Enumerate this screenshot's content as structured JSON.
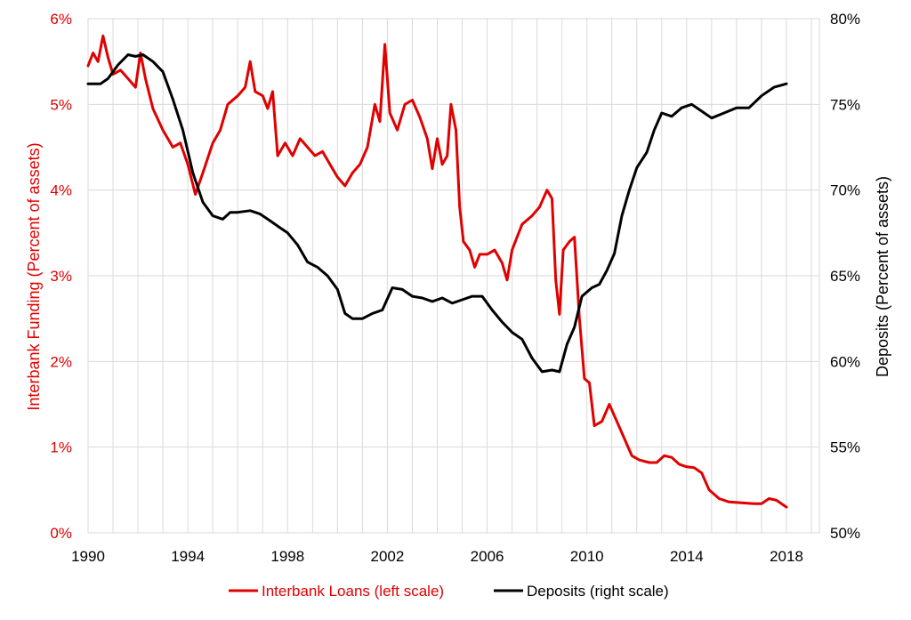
{
  "chart_data": {
    "type": "line",
    "title": "",
    "x_ticks": [
      "1990",
      "1994",
      "1998",
      "2002",
      "2006",
      "2010",
      "2014",
      "2018"
    ],
    "xlim": [
      1990,
      2019
    ],
    "left_axis": {
      "label": "Interbank Funding (Percent of assets)",
      "ticks": [
        "0%",
        "1%",
        "2%",
        "3%",
        "4%",
        "5%",
        "6%"
      ],
      "ylim": [
        0,
        6
      ],
      "color": "#e00000"
    },
    "right_axis": {
      "label": "Deposits (Percent of assets)",
      "ticks": [
        "50%",
        "55%",
        "60%",
        "65%",
        "70%",
        "75%",
        "80%"
      ],
      "ylim": [
        50,
        80
      ],
      "color": "#000000"
    },
    "grid": true,
    "legend_position": "bottom",
    "series": [
      {
        "name": "Interbank Loans (left scale)",
        "axis": "left",
        "color": "#e00000",
        "points": [
          [
            1990.0,
            5.45
          ],
          [
            1990.2,
            5.6
          ],
          [
            1990.4,
            5.5
          ],
          [
            1990.6,
            5.8
          ],
          [
            1990.8,
            5.55
          ],
          [
            1991.0,
            5.35
          ],
          [
            1991.3,
            5.4
          ],
          [
            1991.6,
            5.3
          ],
          [
            1991.9,
            5.2
          ],
          [
            1992.1,
            5.6
          ],
          [
            1992.3,
            5.3
          ],
          [
            1992.6,
            4.95
          ],
          [
            1993.0,
            4.7
          ],
          [
            1993.4,
            4.5
          ],
          [
            1993.7,
            4.55
          ],
          [
            1994.0,
            4.3
          ],
          [
            1994.3,
            3.95
          ],
          [
            1994.6,
            4.2
          ],
          [
            1995.0,
            4.55
          ],
          [
            1995.3,
            4.7
          ],
          [
            1995.6,
            5.0
          ],
          [
            1996.0,
            5.1
          ],
          [
            1996.3,
            5.2
          ],
          [
            1996.5,
            5.5
          ],
          [
            1996.7,
            5.15
          ],
          [
            1997.0,
            5.1
          ],
          [
            1997.2,
            4.95
          ],
          [
            1997.4,
            5.15
          ],
          [
            1997.6,
            4.4
          ],
          [
            1997.9,
            4.55
          ],
          [
            1998.2,
            4.4
          ],
          [
            1998.5,
            4.6
          ],
          [
            1998.8,
            4.5
          ],
          [
            1999.1,
            4.4
          ],
          [
            1999.4,
            4.45
          ],
          [
            1999.7,
            4.3
          ],
          [
            2000.0,
            4.15
          ],
          [
            2000.3,
            4.05
          ],
          [
            2000.6,
            4.2
          ],
          [
            2000.9,
            4.3
          ],
          [
            2001.2,
            4.5
          ],
          [
            2001.5,
            5.0
          ],
          [
            2001.7,
            4.8
          ],
          [
            2001.9,
            5.7
          ],
          [
            2002.1,
            4.9
          ],
          [
            2002.4,
            4.7
          ],
          [
            2002.7,
            5.0
          ],
          [
            2003.0,
            5.05
          ],
          [
            2003.3,
            4.85
          ],
          [
            2003.6,
            4.6
          ],
          [
            2003.8,
            4.25
          ],
          [
            2004.0,
            4.6
          ],
          [
            2004.2,
            4.3
          ],
          [
            2004.4,
            4.4
          ],
          [
            2004.55,
            5.0
          ],
          [
            2004.75,
            4.7
          ],
          [
            2004.9,
            3.8
          ],
          [
            2005.05,
            3.4
          ],
          [
            2005.3,
            3.3
          ],
          [
            2005.5,
            3.1
          ],
          [
            2005.7,
            3.25
          ],
          [
            2006.0,
            3.25
          ],
          [
            2006.3,
            3.3
          ],
          [
            2006.6,
            3.15
          ],
          [
            2006.8,
            2.95
          ],
          [
            2007.0,
            3.3
          ],
          [
            2007.4,
            3.6
          ],
          [
            2007.8,
            3.7
          ],
          [
            2008.1,
            3.8
          ],
          [
            2008.4,
            4.0
          ],
          [
            2008.6,
            3.9
          ],
          [
            2008.75,
            2.95
          ],
          [
            2008.9,
            2.55
          ],
          [
            2009.05,
            3.3
          ],
          [
            2009.3,
            3.4
          ],
          [
            2009.5,
            3.45
          ],
          [
            2009.7,
            2.5
          ],
          [
            2009.9,
            1.8
          ],
          [
            2010.1,
            1.75
          ],
          [
            2010.3,
            1.25
          ],
          [
            2010.6,
            1.3
          ],
          [
            2010.9,
            1.5
          ],
          [
            2011.2,
            1.3
          ],
          [
            2011.5,
            1.1
          ],
          [
            2011.8,
            0.9
          ],
          [
            2012.1,
            0.85
          ],
          [
            2012.5,
            0.82
          ],
          [
            2012.8,
            0.82
          ],
          [
            2013.1,
            0.9
          ],
          [
            2013.4,
            0.88
          ],
          [
            2013.7,
            0.8
          ],
          [
            2014.0,
            0.77
          ],
          [
            2014.3,
            0.76
          ],
          [
            2014.6,
            0.7
          ],
          [
            2014.9,
            0.5
          ],
          [
            2015.3,
            0.4
          ],
          [
            2015.7,
            0.36
          ],
          [
            2016.2,
            0.35
          ],
          [
            2016.7,
            0.34
          ],
          [
            2017.0,
            0.34
          ],
          [
            2017.3,
            0.4
          ],
          [
            2017.6,
            0.38
          ],
          [
            2018.0,
            0.3
          ]
        ]
      },
      {
        "name": "Deposits (right scale)",
        "axis": "right",
        "color": "#000000",
        "points": [
          [
            1990.0,
            76.2
          ],
          [
            1990.5,
            76.2
          ],
          [
            1990.8,
            76.5
          ],
          [
            1991.2,
            77.3
          ],
          [
            1991.6,
            77.9
          ],
          [
            1991.9,
            77.8
          ],
          [
            1992.2,
            77.9
          ],
          [
            1992.6,
            77.5
          ],
          [
            1993.0,
            76.9
          ],
          [
            1993.4,
            75.3
          ],
          [
            1993.8,
            73.5
          ],
          [
            1994.2,
            71.0
          ],
          [
            1994.6,
            69.3
          ],
          [
            1995.0,
            68.5
          ],
          [
            1995.4,
            68.3
          ],
          [
            1995.7,
            68.7
          ],
          [
            1996.0,
            68.7
          ],
          [
            1996.5,
            68.8
          ],
          [
            1996.9,
            68.6
          ],
          [
            1997.3,
            68.2
          ],
          [
            1997.7,
            67.8
          ],
          [
            1998.0,
            67.5
          ],
          [
            1998.4,
            66.8
          ],
          [
            1998.8,
            65.8
          ],
          [
            1999.2,
            65.5
          ],
          [
            1999.6,
            65.0
          ],
          [
            2000.0,
            64.2
          ],
          [
            2000.3,
            62.8
          ],
          [
            2000.6,
            62.5
          ],
          [
            2001.0,
            62.5
          ],
          [
            2001.4,
            62.8
          ],
          [
            2001.8,
            63.0
          ],
          [
            2002.2,
            64.3
          ],
          [
            2002.6,
            64.2
          ],
          [
            2003.0,
            63.8
          ],
          [
            2003.4,
            63.7
          ],
          [
            2003.8,
            63.5
          ],
          [
            2004.2,
            63.7
          ],
          [
            2004.6,
            63.4
          ],
          [
            2005.0,
            63.6
          ],
          [
            2005.4,
            63.8
          ],
          [
            2005.8,
            63.8
          ],
          [
            2006.2,
            63.0
          ],
          [
            2006.6,
            62.3
          ],
          [
            2007.0,
            61.7
          ],
          [
            2007.4,
            61.3
          ],
          [
            2007.8,
            60.2
          ],
          [
            2008.2,
            59.4
          ],
          [
            2008.6,
            59.5
          ],
          [
            2008.9,
            59.4
          ],
          [
            2009.2,
            61.0
          ],
          [
            2009.5,
            62.0
          ],
          [
            2009.8,
            63.8
          ],
          [
            2010.2,
            64.3
          ],
          [
            2010.5,
            64.5
          ],
          [
            2010.8,
            65.3
          ],
          [
            2011.1,
            66.3
          ],
          [
            2011.4,
            68.5
          ],
          [
            2011.7,
            70.0
          ],
          [
            2012.0,
            71.3
          ],
          [
            2012.4,
            72.2
          ],
          [
            2012.7,
            73.5
          ],
          [
            2013.0,
            74.5
          ],
          [
            2013.4,
            74.3
          ],
          [
            2013.8,
            74.8
          ],
          [
            2014.2,
            75.0
          ],
          [
            2014.6,
            74.6
          ],
          [
            2015.0,
            74.2
          ],
          [
            2015.5,
            74.5
          ],
          [
            2016.0,
            74.8
          ],
          [
            2016.5,
            74.8
          ],
          [
            2017.0,
            75.5
          ],
          [
            2017.5,
            76.0
          ],
          [
            2018.0,
            76.2
          ]
        ]
      }
    ]
  }
}
